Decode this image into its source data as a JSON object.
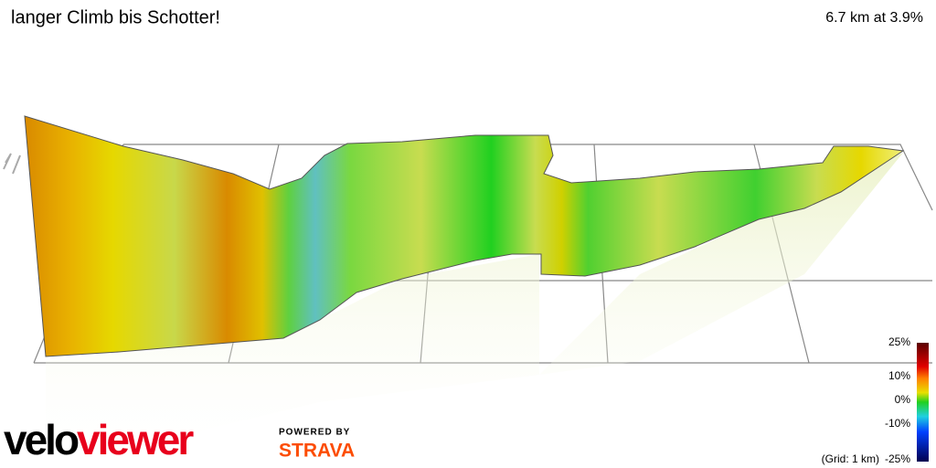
{
  "header": {
    "title": "langer Climb bis Schotter!",
    "stats": "6.7 km at 3.9%"
  },
  "legend": {
    "labels": [
      "25%",
      "10%",
      "0%",
      "-10%",
      "-25%"
    ],
    "grid_note": "(Grid: 1 km)"
  },
  "branding": {
    "logo_start": "velo",
    "logo_end": "viewer",
    "powered_by": "POWERED BY",
    "strava": "STRAVA"
  }
}
